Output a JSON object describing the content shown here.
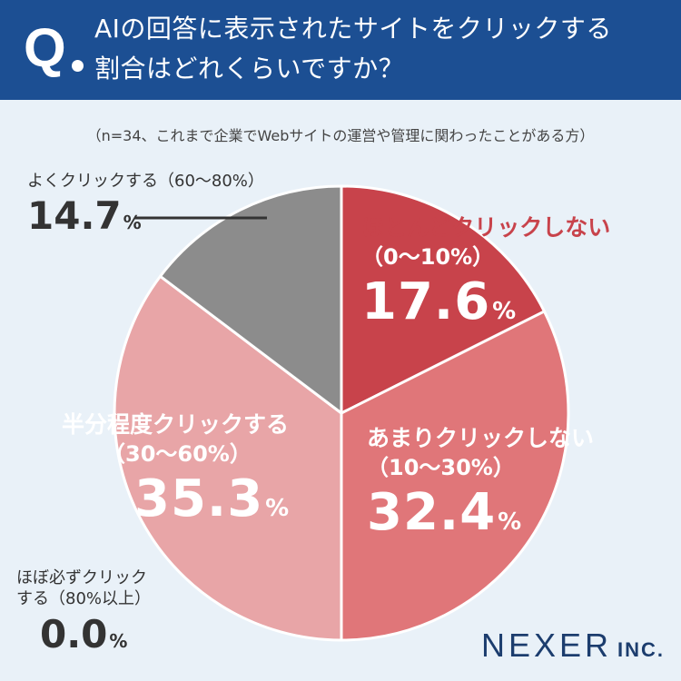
{
  "header": {
    "q_mark": "Q",
    "question_line1": "AIの回答に表示されたサイトをクリックする",
    "question_line2": "割合はどれくらいですか？"
  },
  "note": "（n=34、これまで企業でWebサイトの運営や管理に関わったことがある方）",
  "chart_data": {
    "type": "pie",
    "title": "AIの回答に表示されたサイトをクリックする割合はどれくらいですか？",
    "n": 34,
    "unit": "%",
    "slices": [
      {
        "name": "ほとんどクリックしない",
        "range": "（0〜10%）",
        "value": 17.6,
        "value_text": "17.6",
        "color": "#c8434b"
      },
      {
        "name": "あまりクリックしない",
        "range": "（10〜30%）",
        "value": 32.4,
        "value_text": "32.4",
        "color": "#e07679"
      },
      {
        "name": "半分程度クリックする",
        "range": "（30〜60%）",
        "value": 35.3,
        "value_text": "35.3",
        "color": "#e8a5a7"
      },
      {
        "name": "ほぼ必ずクリックする（80%以上）",
        "range": "",
        "value": 0.0,
        "value_text": "0.0",
        "color": "#f2d3d4"
      },
      {
        "name": "よくクリックする（60〜80%）",
        "range": "",
        "value": 14.7,
        "value_text": "14.7",
        "color": "#8c8c8c"
      }
    ],
    "small_labels": {
      "frequent_name": "よくクリックする（60〜80%）",
      "always_name_line1": "ほぼ必ずクリック",
      "always_name_line2": "する（80%以上）"
    }
  },
  "colors": {
    "header_bg": "#1c4f93",
    "background": "#e9f1f8",
    "slice_border": "#ffffff",
    "label_red": "#c8434b",
    "label_white": "#ffffff",
    "logo": "#1c3d6e"
  },
  "logo": {
    "main": "NEXER",
    "sub": "INC."
  }
}
